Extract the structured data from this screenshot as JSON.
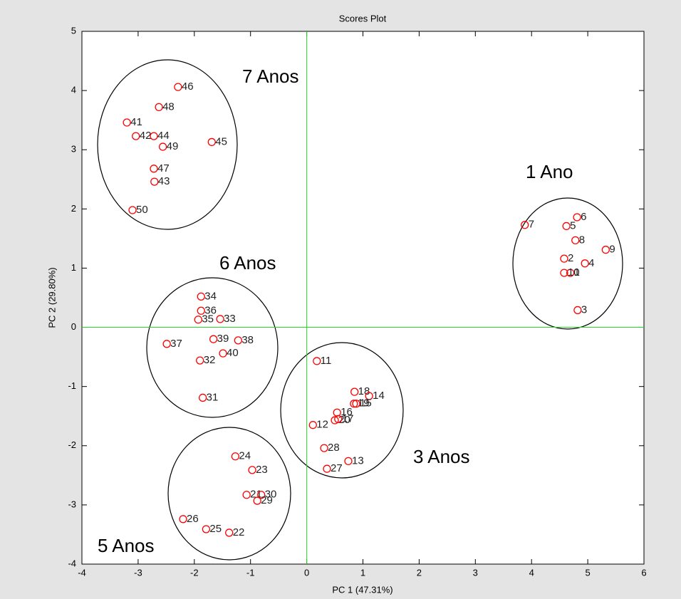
{
  "chart_data": {
    "type": "scatter",
    "title": "Scores Plot",
    "x_label": "PC 1 (47.31%)",
    "y_label": "PC 2 (29.80%)",
    "xlim": [
      -4,
      6
    ],
    "xticks": [
      -4,
      -3,
      -2,
      -1,
      0,
      1,
      2,
      3,
      4,
      5,
      6
    ],
    "ylim": [
      -4,
      5
    ],
    "yticks": [
      -4,
      -3,
      -2,
      -1,
      0,
      1,
      2,
      3,
      4,
      5
    ],
    "color": "#ff0000",
    "reference_line_color": "#22dd22",
    "hlines": [
      0
    ],
    "vlines": [
      0
    ],
    "labels": [
      "46",
      "48",
      "41",
      "42",
      "44",
      "49",
      "45",
      "47",
      "43",
      "50",
      "7",
      "6",
      "5",
      "8",
      "9",
      "2",
      "4",
      "1",
      "10",
      "3",
      "34",
      "36",
      "35",
      "33",
      "37",
      "39",
      "38",
      "40",
      "32",
      "31",
      "11",
      "18",
      "14",
      "19",
      "15",
      "16",
      "20",
      "17",
      "12",
      "28",
      "13",
      "27",
      "24",
      "23",
      "21",
      "30",
      "29",
      "26",
      "25",
      "22"
    ],
    "x": [
      -2.29,
      -2.63,
      -3.2,
      -3.04,
      -2.72,
      -2.56,
      -1.69,
      -2.72,
      -2.71,
      -3.1,
      3.88,
      4.81,
      4.62,
      4.78,
      5.32,
      4.58,
      4.95,
      4.69,
      4.58,
      4.82,
      -1.88,
      -1.88,
      -1.93,
      -1.54,
      -2.49,
      -1.66,
      -1.22,
      -1.49,
      -1.9,
      -1.85,
      0.18,
      0.85,
      1.11,
      0.84,
      0.88,
      0.54,
      0.5,
      0.56,
      0.11,
      0.31,
      0.74,
      0.36,
      -1.27,
      -0.97,
      -1.07,
      -0.81,
      -0.88,
      -2.2,
      -1.79,
      -1.38
    ],
    "y": [
      4.06,
      3.72,
      3.46,
      3.23,
      3.23,
      3.05,
      3.13,
      2.68,
      2.46,
      1.98,
      1.73,
      1.86,
      1.71,
      1.47,
      1.31,
      1.16,
      1.08,
      0.92,
      0.92,
      0.29,
      0.52,
      0.28,
      0.13,
      0.14,
      -0.28,
      -0.2,
      -0.22,
      -0.44,
      -0.56,
      -1.19,
      -0.57,
      -1.09,
      -1.16,
      -1.29,
      -1.29,
      -1.44,
      -1.57,
      -1.55,
      -1.65,
      -2.04,
      -2.26,
      -2.39,
      -2.18,
      -2.41,
      -2.83,
      -2.83,
      -2.93,
      -3.24,
      -3.41,
      -3.47
    ],
    "annotations": [
      "7 Anos",
      "1 Ano",
      "6 Anos",
      "3 Anos",
      "5 Anos"
    ]
  }
}
